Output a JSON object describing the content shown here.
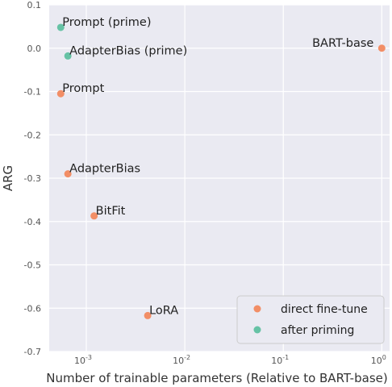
{
  "chart_data": {
    "type": "scatter",
    "xlabel": "Number of trainable parameters (Relative to BART-base)",
    "ylabel": "ARG",
    "xscale": "log",
    "xlim": [
      0.00042,
      1.2
    ],
    "ylim": [
      -0.7,
      0.1
    ],
    "grid": true,
    "legend_position": "bottom-right",
    "x_ticks": [
      {
        "value": 0.001,
        "base": "10",
        "exp": "-3"
      },
      {
        "value": 0.01,
        "base": "10",
        "exp": "-2"
      },
      {
        "value": 0.1,
        "base": "10",
        "exp": "-1"
      },
      {
        "value": 1,
        "base": "10",
        "exp": "0"
      }
    ],
    "y_ticks": [
      {
        "value": 0.1,
        "label": "0.1"
      },
      {
        "value": 0.0,
        "label": "0.0"
      },
      {
        "value": -0.1,
        "label": "-0.1"
      },
      {
        "value": -0.2,
        "label": "-0.2"
      },
      {
        "value": -0.3,
        "label": "-0.3"
      },
      {
        "value": -0.4,
        "label": "-0.4"
      },
      {
        "value": -0.5,
        "label": "-0.5"
      },
      {
        "value": -0.6,
        "label": "-0.6"
      },
      {
        "value": -0.7,
        "label": "-0.7"
      }
    ],
    "series": [
      {
        "name": "direct fine-tune",
        "color": "#f28e66",
        "points": [
          {
            "x": 1.0,
            "y": 0.0,
            "label": "BART-base"
          },
          {
            "x": 0.00055,
            "y": -0.105,
            "label": "Prompt"
          },
          {
            "x": 0.00065,
            "y": -0.29,
            "label": "AdapterBias"
          },
          {
            "x": 0.0012,
            "y": -0.387,
            "label": "BitFit"
          },
          {
            "x": 0.0042,
            "y": -0.617,
            "label": "LoRA"
          }
        ]
      },
      {
        "name": "after priming",
        "color": "#66c2a5",
        "points": [
          {
            "x": 0.00055,
            "y": 0.048,
            "label": "Prompt (prime)"
          },
          {
            "x": 0.00065,
            "y": -0.018,
            "label": "AdapterBias (prime)"
          }
        ]
      }
    ]
  }
}
